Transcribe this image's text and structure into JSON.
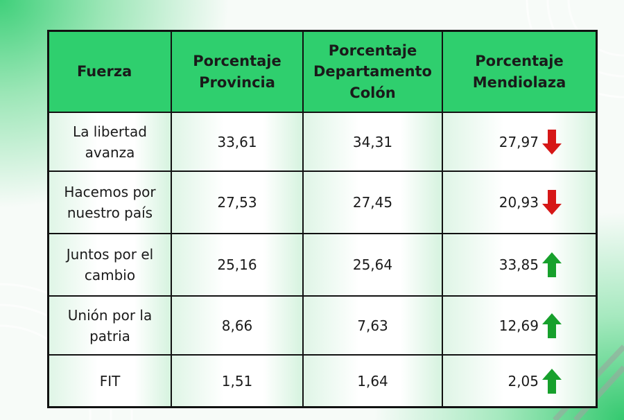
{
  "table": {
    "header": [
      "Fuerza",
      "Porcentaje Provincia",
      "Porcentaje Departamento Colón",
      "Porcentaje Mendiolaza"
    ],
    "rows": [
      [
        "La libertad avanza",
        "33,61",
        "34,31",
        "27,97"
      ],
      [
        "Hacemos por nuestro país",
        "27,53",
        "27,45",
        "20,93"
      ],
      [
        "Juntos por el cambio",
        "25,16",
        "25,64",
        "33,85"
      ],
      [
        "Unión por la patria",
        "8,66",
        "7,63",
        "12,69"
      ],
      [
        "FIT",
        "1,51",
        "1,64",
        "2,05"
      ]
    ]
  }
}
